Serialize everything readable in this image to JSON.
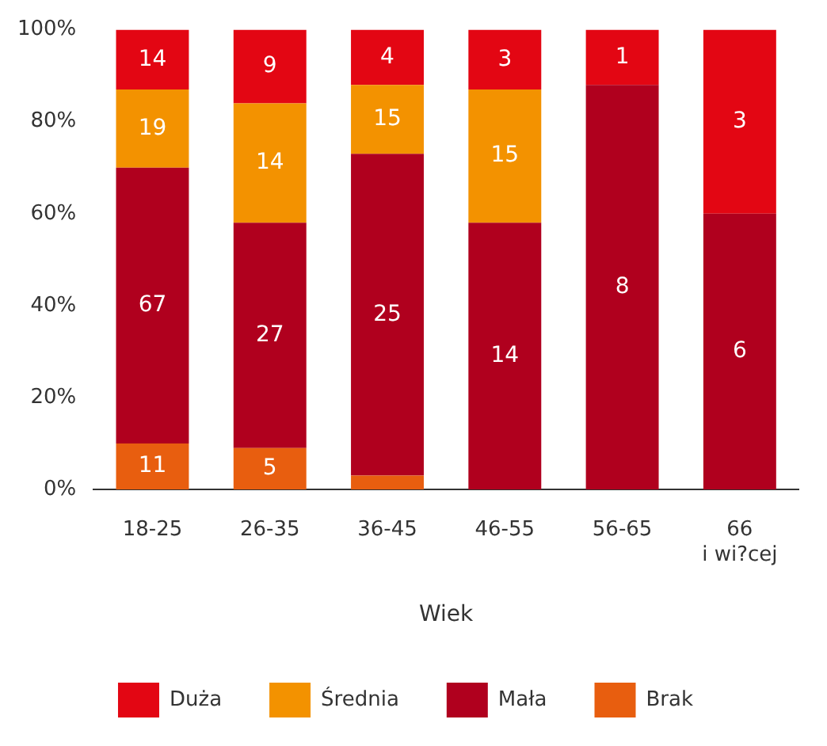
{
  "chart_data": {
    "type": "bar",
    "stacked": true,
    "xlabel": "Wiek",
    "categories": [
      "18-25",
      "26-35",
      "36-45",
      "46-55",
      "56-65",
      "66\ni wi?cej"
    ],
    "series": [
      {
        "name": "Brak",
        "color": "#e85e0f",
        "values": [
          10,
          9,
          3,
          null,
          null,
          null
        ]
      },
      {
        "name": "Mała",
        "color": "#b0001e",
        "values": [
          60,
          49,
          70,
          58,
          88,
          60
        ]
      },
      {
        "name": "Średnia",
        "color": "#f39200",
        "values": [
          17,
          26,
          15,
          29,
          null,
          null
        ]
      },
      {
        "name": "Duża",
        "color": "#e30613",
        "values": [
          13,
          16,
          12,
          13,
          12,
          40
        ]
      }
    ],
    "annotations": [
      "11",
      "5",
      "67",
      "27",
      "25",
      "14",
      "8",
      "6",
      "19",
      "14",
      "15",
      "15",
      "14",
      "9",
      "4",
      "3",
      "1",
      "3"
    ],
    "ylim": [
      0,
      100
    ],
    "yticks": [
      {
        "value": 0,
        "label": "0%"
      },
      {
        "value": 20,
        "label": "20%"
      },
      {
        "value": 40,
        "label": "40%"
      },
      {
        "value": 60,
        "label": "60%"
      },
      {
        "value": 80,
        "label": "80%"
      },
      {
        "value": 100,
        "label": "100%"
      }
    ],
    "grid": false,
    "legend": "bottom"
  }
}
